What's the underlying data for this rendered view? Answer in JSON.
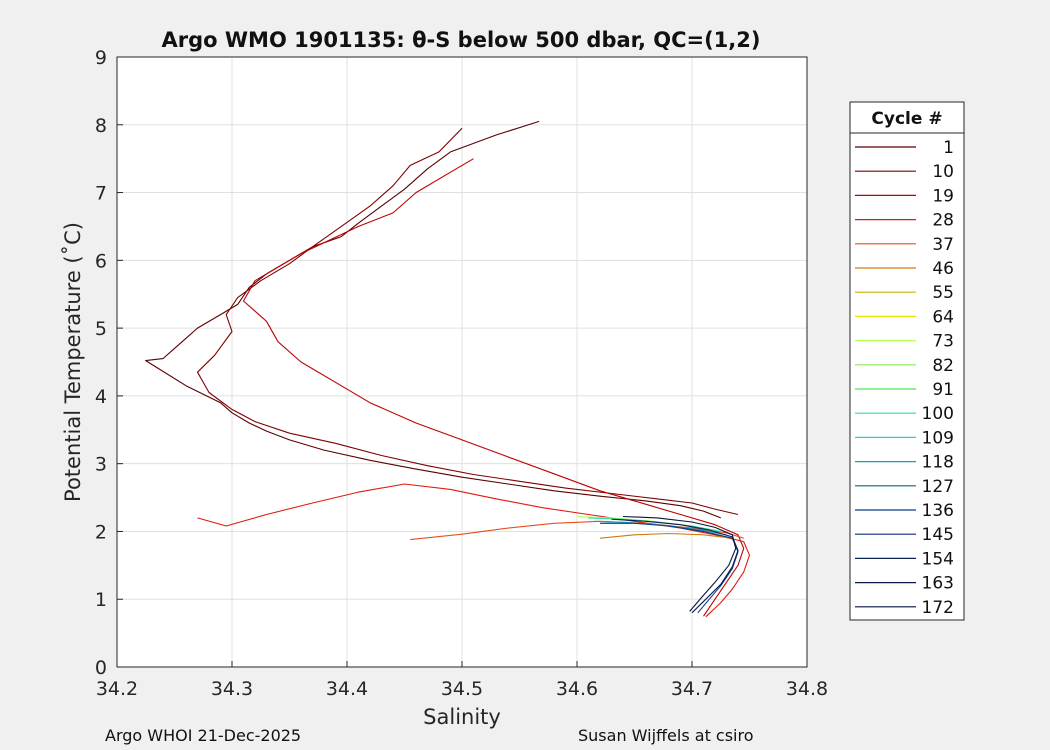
{
  "chart_data": {
    "type": "line",
    "title": "Argo WMO 1901135: θ-S below 500 dbar,  QC=(1,2)",
    "xlabel": "Salinity",
    "ylabel": "Potential Temperature (˚C)",
    "xlim": [
      34.2,
      34.8
    ],
    "ylim": [
      0,
      9
    ],
    "xticks": [
      "34.2",
      "34.3",
      "34.4",
      "34.5",
      "34.6",
      "34.7",
      "34.8"
    ],
    "yticks": [
      "0",
      "1",
      "2",
      "3",
      "4",
      "5",
      "6",
      "7",
      "8",
      "9"
    ],
    "grid": true,
    "legend": {
      "title": "Cycle #",
      "location": "outside-right",
      "entries": [
        "1",
        "10",
        "19",
        "28",
        "37",
        "46",
        "55",
        "64",
        "73",
        "82",
        "91",
        "100",
        "109",
        "118",
        "127",
        "136",
        "145",
        "154",
        "163",
        "172"
      ],
      "colors": [
        "#5a0000",
        "#800000",
        "#c00000",
        "#e21a10",
        "#e8501c",
        "#d07a10",
        "#c8b400",
        "#e8e800",
        "#b4ff50",
        "#8ce850",
        "#50e850",
        "#28e0a0",
        "#20d2d2",
        "#12a0b4",
        "#0a6482",
        "#0a3c8c",
        "#0a2a78",
        "#0a2050",
        "#0a1a4a",
        "#0a1240"
      ]
    },
    "series": [
      {
        "name": "1",
        "color": "#5a0000",
        "x": [
          34.567,
          34.53,
          34.49,
          34.47,
          34.45,
          34.43,
          34.41,
          34.395,
          34.37,
          34.35,
          34.33,
          34.315,
          34.305,
          34.29,
          34.27,
          34.26,
          34.25,
          34.24,
          34.225,
          34.26,
          34.29,
          34.3,
          34.315,
          34.33,
          34.35,
          34.38,
          34.42,
          34.46,
          34.5,
          34.54,
          34.58,
          34.62,
          34.66,
          34.69,
          34.71,
          34.725
        ],
        "y": [
          8.05,
          7.85,
          7.6,
          7.35,
          7.05,
          6.8,
          6.55,
          6.35,
          6.2,
          6.0,
          5.8,
          5.6,
          5.35,
          5.2,
          5.0,
          4.85,
          4.7,
          4.55,
          4.52,
          4.15,
          3.9,
          3.75,
          3.6,
          3.48,
          3.35,
          3.2,
          3.05,
          2.92,
          2.8,
          2.7,
          2.6,
          2.52,
          2.45,
          2.38,
          2.3,
          2.2
        ]
      },
      {
        "name": "10",
        "color": "#800000",
        "x": [
          34.5,
          34.48,
          34.455,
          34.44,
          34.42,
          34.395,
          34.37,
          34.35,
          34.325,
          34.305,
          34.295,
          34.3,
          34.285,
          34.27,
          34.28,
          34.3,
          34.32,
          34.35,
          34.39,
          34.43,
          34.47,
          34.51,
          34.55,
          34.59,
          34.63,
          34.67,
          34.7,
          34.72,
          34.74
        ],
        "y": [
          7.95,
          7.6,
          7.4,
          7.1,
          6.8,
          6.5,
          6.2,
          5.95,
          5.7,
          5.45,
          5.2,
          4.95,
          4.6,
          4.35,
          4.05,
          3.8,
          3.62,
          3.45,
          3.3,
          3.12,
          2.97,
          2.84,
          2.74,
          2.64,
          2.56,
          2.48,
          2.42,
          2.33,
          2.25
        ]
      },
      {
        "name": "19",
        "color": "#c00000",
        "x": [
          34.51,
          34.49,
          34.46,
          34.44,
          34.41,
          34.385,
          34.36,
          34.34,
          34.32,
          34.31,
          34.33,
          34.34,
          34.36,
          34.39,
          34.42,
          34.46,
          34.5,
          34.54,
          34.58,
          34.62,
          34.66,
          34.69,
          34.72,
          34.74,
          34.745,
          34.74,
          34.73,
          34.72,
          34.71
        ],
        "y": [
          7.5,
          7.3,
          7.0,
          6.7,
          6.5,
          6.3,
          6.1,
          5.9,
          5.7,
          5.4,
          5.1,
          4.8,
          4.5,
          4.2,
          3.9,
          3.6,
          3.35,
          3.1,
          2.85,
          2.6,
          2.4,
          2.25,
          2.1,
          1.95,
          1.75,
          1.5,
          1.25,
          1.0,
          0.75
        ]
      },
      {
        "name": "28",
        "color": "#e21a10",
        "x": [
          34.27,
          34.295,
          34.33,
          34.37,
          34.41,
          34.45,
          34.49,
          34.53,
          34.57,
          34.61,
          34.65,
          34.69,
          34.72,
          34.745,
          34.75,
          34.745,
          34.735,
          34.725,
          34.712
        ],
        "y": [
          2.2,
          2.08,
          2.25,
          2.42,
          2.58,
          2.7,
          2.62,
          2.48,
          2.35,
          2.25,
          2.15,
          2.05,
          1.95,
          1.85,
          1.65,
          1.4,
          1.15,
          0.95,
          0.74
        ]
      },
      {
        "name": "37",
        "color": "#e8501c",
        "x": [
          34.455,
          34.5,
          34.54,
          34.58,
          34.62,
          34.66,
          34.7,
          34.73,
          34.745
        ],
        "y": [
          1.88,
          1.96,
          2.05,
          2.12,
          2.15,
          2.12,
          2.05,
          1.98,
          1.9
        ]
      },
      {
        "name": "46",
        "color": "#d07a10",
        "x": [
          34.62,
          34.65,
          34.68,
          34.71,
          34.735
        ],
        "y": [
          1.9,
          1.95,
          1.97,
          1.95,
          1.9
        ]
      },
      {
        "name": "73",
        "color": "#b4ff50",
        "x": [
          34.6,
          34.63,
          34.66,
          34.69,
          34.72
        ],
        "y": [
          2.22,
          2.2,
          2.16,
          2.1,
          2.02
        ]
      },
      {
        "name": "100",
        "color": "#28e0a0",
        "x": [
          34.61,
          34.64,
          34.67,
          34.7,
          34.725
        ],
        "y": [
          2.2,
          2.18,
          2.14,
          2.08,
          2.0
        ]
      },
      {
        "name": "118",
        "color": "#12a0b4",
        "x": [
          34.615,
          34.645,
          34.675,
          34.705,
          34.73
        ],
        "y": [
          2.15,
          2.13,
          2.09,
          2.03,
          1.95
        ]
      },
      {
        "name": "136",
        "color": "#0a3c8c",
        "x": [
          34.62,
          34.65,
          34.68,
          34.71,
          34.735,
          34.74,
          34.735,
          34.725,
          34.715,
          34.705
        ],
        "y": [
          2.12,
          2.12,
          2.08,
          2.0,
          1.9,
          1.7,
          1.45,
          1.2,
          1.0,
          0.8
        ]
      },
      {
        "name": "154",
        "color": "#0a2050",
        "x": [
          34.63,
          34.66,
          34.69,
          34.715,
          34.735,
          34.74,
          34.735,
          34.725,
          34.712,
          34.7
        ],
        "y": [
          2.18,
          2.15,
          2.1,
          2.02,
          1.92,
          1.72,
          1.48,
          1.22,
          1.0,
          0.8
        ]
      },
      {
        "name": "172",
        "color": "#0a1240",
        "x": [
          34.64,
          34.67,
          34.7,
          34.72,
          34.735,
          34.738,
          34.732,
          34.72,
          34.708,
          34.698
        ],
        "y": [
          2.22,
          2.2,
          2.14,
          2.06,
          1.95,
          1.75,
          1.5,
          1.25,
          1.02,
          0.82
        ]
      }
    ]
  },
  "footer": {
    "left": "Argo WHOI 21-Dec-2025",
    "right": "Susan Wijffels at csiro"
  }
}
